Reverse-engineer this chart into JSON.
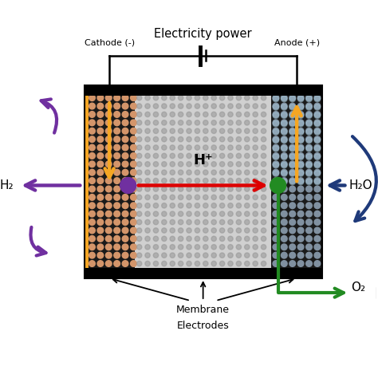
{
  "title": "Electricity power",
  "cathode_label": "Cathode (-)",
  "anode_label": "Anode (+)",
  "membrane_label": "Membrane",
  "electrodes_label": "Electrodes",
  "hplus_label": "H⁺",
  "h2_label": "H₂",
  "h2o_label": "H₂O",
  "o2_label": "O₂",
  "bg_color": "#ffffff",
  "cathode_dot_color": "#d4956a",
  "anode_dot_color": "#8a8a8a",
  "membrane_dot_color": "#aaaaaa",
  "electrode_bg": "#1a1a1a",
  "membrane_bg": "#c0c0c0",
  "purple_color": "#7030a0",
  "orange_color": "#f5a623",
  "red_color": "#dd0000",
  "green_color": "#228B22",
  "dark_blue": "#1f3a7a",
  "cathode_line_color": "#f5a623",
  "figsize": [
    4.74,
    4.74
  ],
  "dpi": 100
}
